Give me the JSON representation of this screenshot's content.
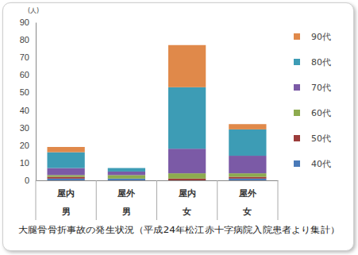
{
  "chart_data": {
    "type": "bar",
    "stacked": true,
    "title": "大腿骨骨折事故の発生状況（平成24年松江赤十字病院入院患者より集計）",
    "ylabel": "(人)",
    "categories": [
      [
        "屋内",
        "男"
      ],
      [
        "屋外",
        "男"
      ],
      [
        "屋内",
        "女"
      ],
      [
        "屋外",
        "女"
      ]
    ],
    "series": [
      {
        "name": "40代",
        "color": "#4a7ab8",
        "values": [
          1,
          1,
          0,
          1
        ]
      },
      {
        "name": "50代",
        "color": "#9c3c3a",
        "values": [
          1,
          0,
          1,
          1
        ]
      },
      {
        "name": "60代",
        "color": "#8dab4f",
        "values": [
          1,
          2,
          3,
          2
        ]
      },
      {
        "name": "70代",
        "color": "#7b5aa6",
        "values": [
          4,
          2,
          14,
          10
        ]
      },
      {
        "name": "80代",
        "color": "#3d9cb5",
        "values": [
          9,
          2,
          35,
          15
        ]
      },
      {
        "name": "90代",
        "color": "#e0894a",
        "values": [
          3,
          0,
          24,
          3
        ]
      }
    ],
    "ylim": [
      0,
      90
    ],
    "yticks": [
      0,
      10,
      20,
      30,
      40,
      50,
      60,
      70,
      80,
      90
    ],
    "grid": false,
    "legend": "right"
  }
}
